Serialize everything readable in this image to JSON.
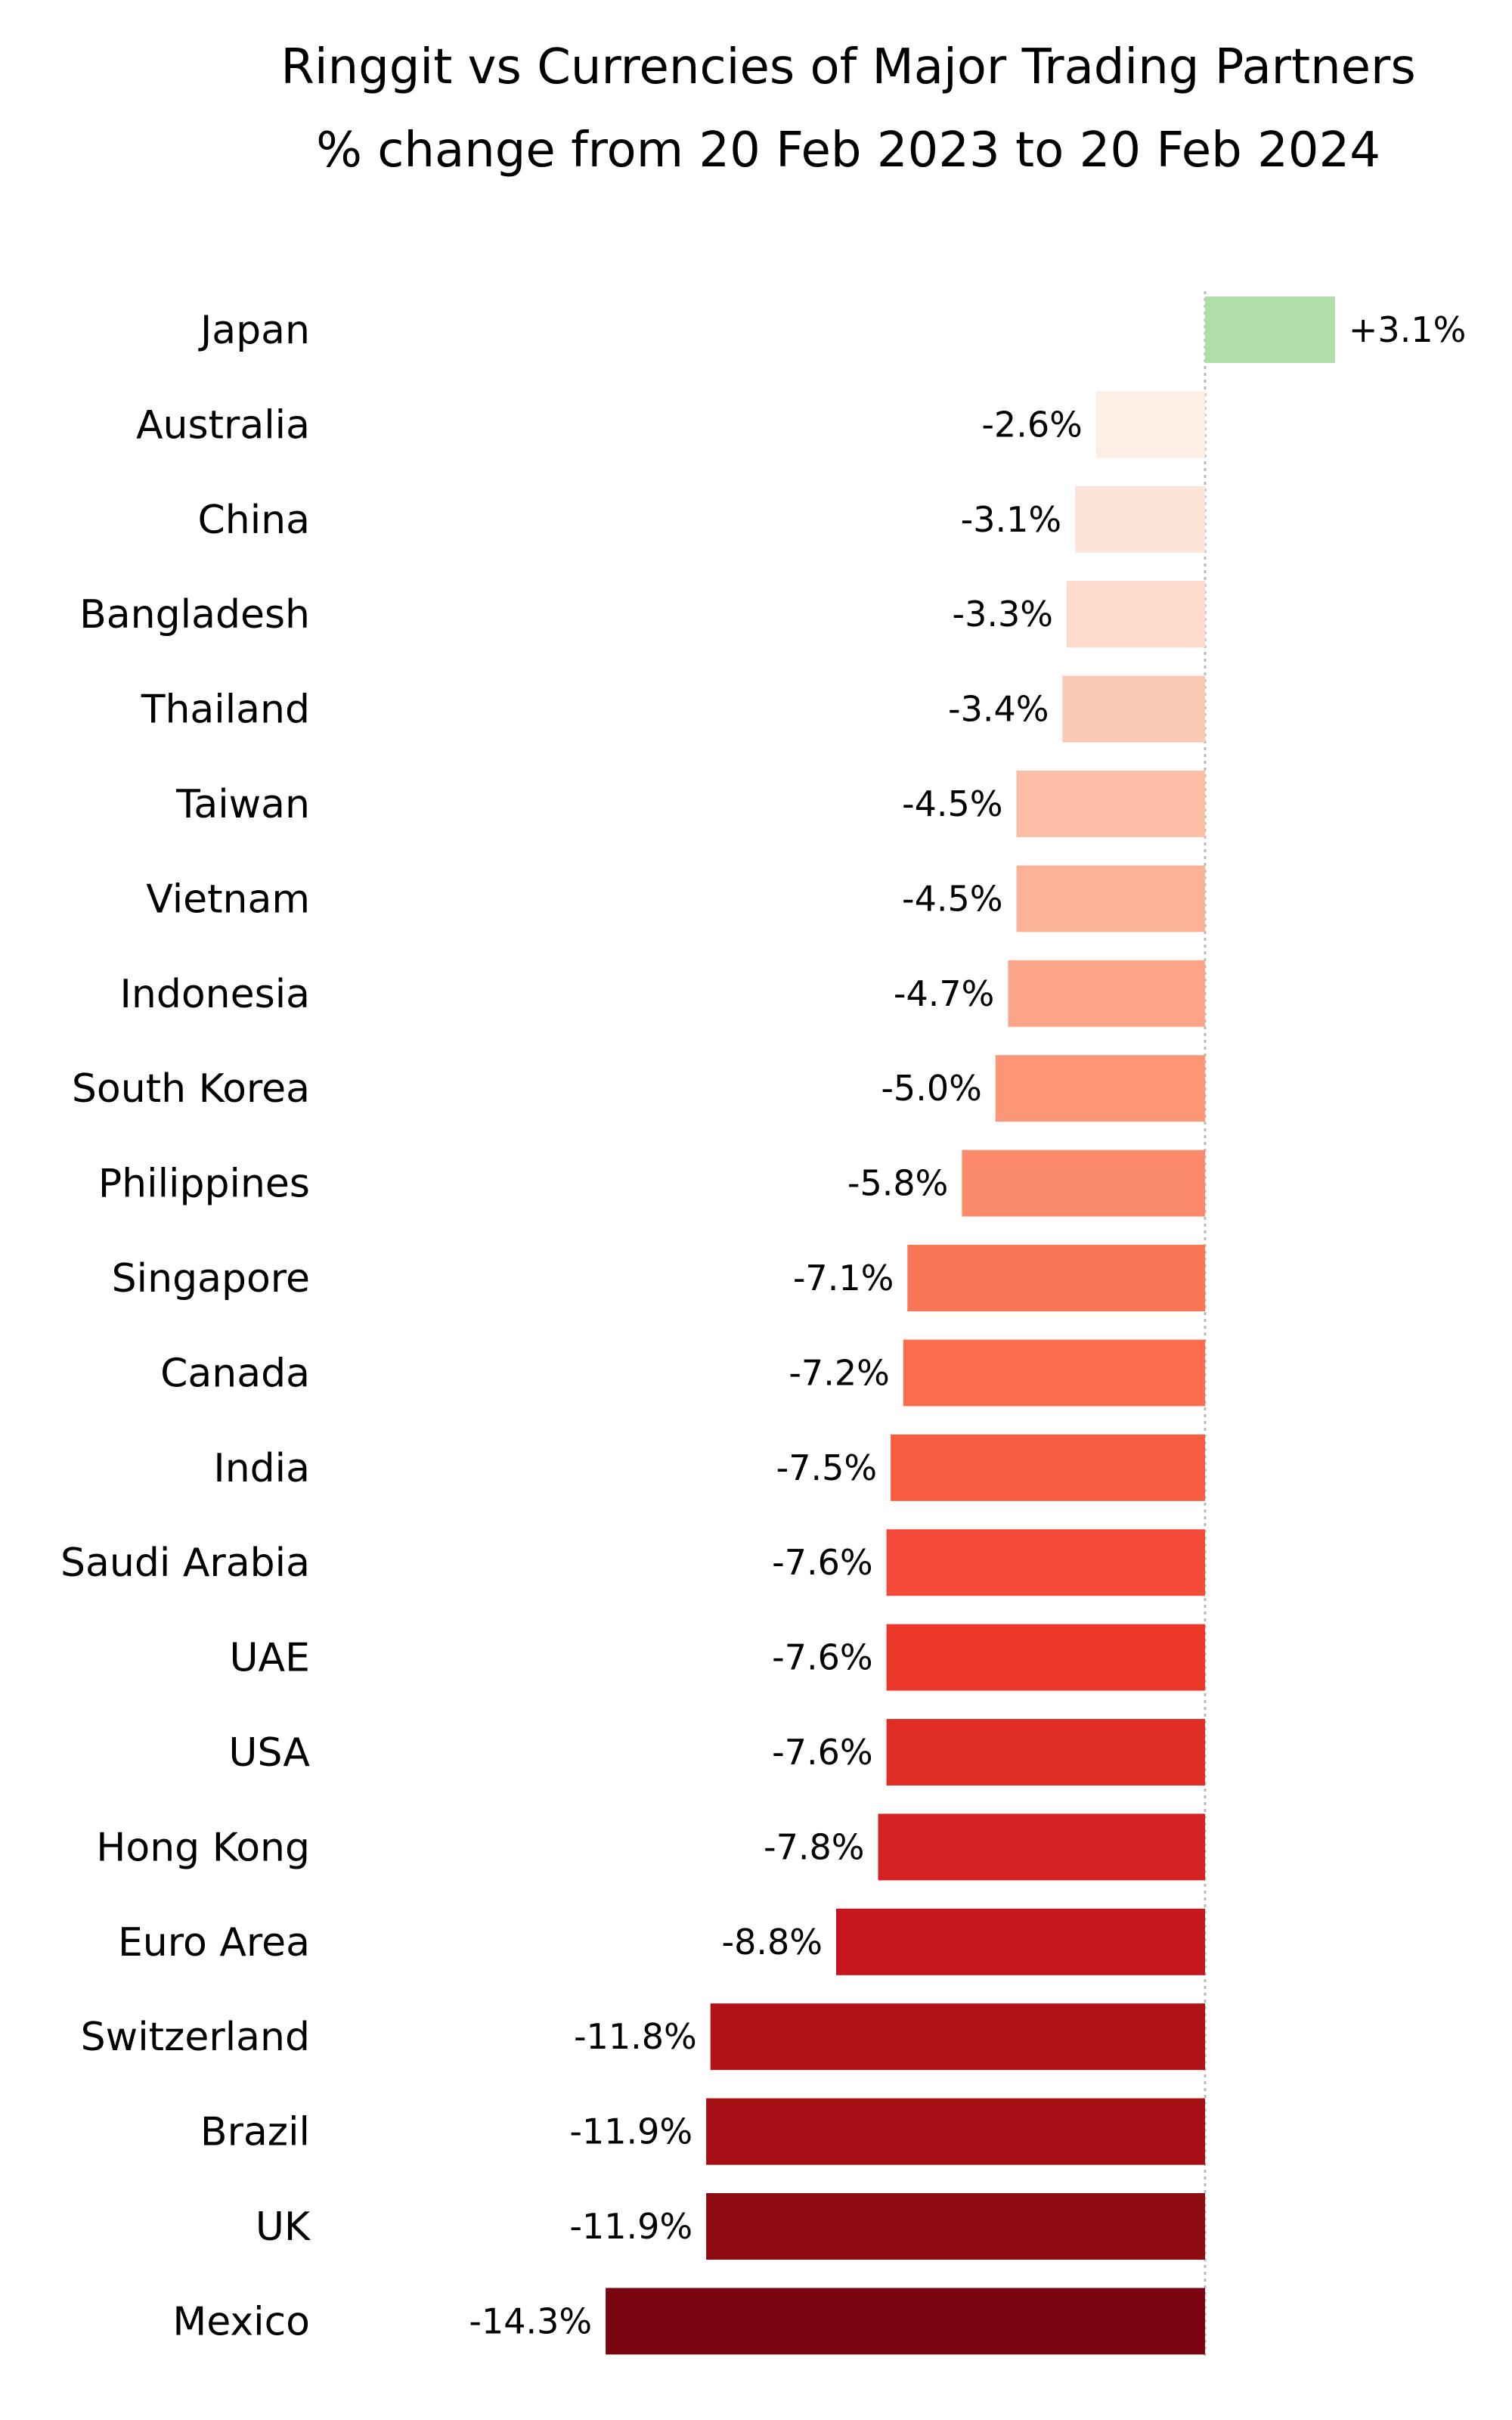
{
  "chart_data": {
    "type": "bar",
    "orientation": "horizontal",
    "title": "Ringgit vs Currencies of Major Trading Partners",
    "subtitle": "% change from 20 Feb 2023 to 20 Feb 2024",
    "xlabel": "",
    "ylabel": "",
    "grid": false,
    "zero_line": "dotted",
    "categories": [
      "Japan",
      "Australia",
      "China",
      "Bangladesh",
      "Thailand",
      "Taiwan",
      "Vietnam",
      "Indonesia",
      "South Korea",
      "Philippines",
      "Singapore",
      "Canada",
      "India",
      "Saudi Arabia",
      "UAE",
      "USA",
      "Hong Kong",
      "Euro Area",
      "Switzerland",
      "Brazil",
      "UK",
      "Mexico"
    ],
    "values": [
      3.1,
      -2.6,
      -3.1,
      -3.3,
      -3.4,
      -4.5,
      -4.5,
      -4.7,
      -5.0,
      -5.8,
      -7.1,
      -7.2,
      -7.5,
      -7.6,
      -7.6,
      -7.6,
      -7.8,
      -8.8,
      -11.8,
      -11.9,
      -11.9,
      -14.3
    ],
    "value_labels": [
      "+3.1%",
      "-2.6%",
      "-3.1%",
      "-3.3%",
      "-3.4%",
      "-4.5%",
      "-4.5%",
      "-4.7%",
      "-5.0%",
      "-5.8%",
      "-7.1%",
      "-7.2%",
      "-7.5%",
      "-7.6%",
      "-7.6%",
      "-7.6%",
      "-7.8%",
      "-8.8%",
      "-11.8%",
      "-11.9%",
      "-11.9%",
      "-14.3%"
    ],
    "colors": [
      "#b0dea8",
      "#feeee6",
      "#fee3d7",
      "#fedbcc",
      "#fcc9b4",
      "#fcbea5",
      "#fcb296",
      "#fca487",
      "#fc9677",
      "#fb8a6a",
      "#fb7656",
      "#fb6c4c",
      "#f85c41",
      "#f34b37",
      "#ec382b",
      "#e12e27",
      "#d42121",
      "#c4161c",
      "#b11218",
      "#a50f15",
      "#8e0b13",
      "#7a0510"
    ]
  }
}
